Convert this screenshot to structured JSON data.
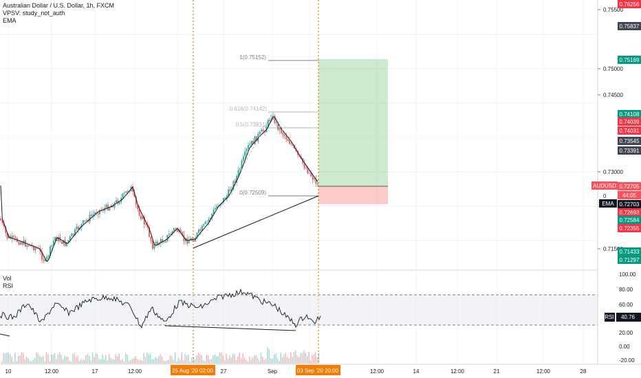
{
  "legend": {
    "title": "Australian Dollar / U.S. Dollar, 1h, FXCM",
    "study1": "VPSV: study_not_auth",
    "study2": "EMA",
    "vol": "Vol",
    "rsi": "RSI"
  },
  "price_axis": {
    "ticks": [
      "0.75500",
      "0.75000",
      "0.74500",
      "0.73000",
      "0.71500"
    ],
    "partial_ticks": [
      "0"
    ]
  },
  "price_tags": [
    {
      "label": "0.76256",
      "color": "#f23645"
    },
    {
      "label": "0.75837",
      "color": "#434651"
    },
    {
      "label": "0.75169",
      "color": "#089981"
    },
    {
      "label": "0.74108",
      "color": "#089981"
    },
    {
      "label": "0.74039",
      "color": "#f23645"
    },
    {
      "label": "0.74031",
      "color": "#f23645"
    },
    {
      "label": "0.73545",
      "color": "#434651"
    },
    {
      "label": "0.73391",
      "color": "#434651"
    },
    {
      "label": "0.72705",
      "color": "#f7525f"
    },
    {
      "label": "44:05",
      "color": "#f7525f"
    },
    {
      "label": "0.72703",
      "color": "#131722"
    },
    {
      "label": "0.72693",
      "color": "#f23645"
    },
    {
      "label": "0.72584",
      "color": "#089981"
    },
    {
      "label": "0.72355",
      "color": "#f23645"
    },
    {
      "label": "0.71433",
      "color": "#089981"
    },
    {
      "label": "0.71297",
      "color": "#089981"
    }
  ],
  "symbol_tag": "AUDUSD",
  "ema_tag": "EMA",
  "fib_labels": {
    "level1": "1(0.75152)",
    "level618": "0.618(0.74142)",
    "level05": "0.5(0.73831)",
    "level0": "0(0.72509)"
  },
  "rsi_axis": {
    "ticks": [
      "100.00",
      "80.00",
      "60.00",
      "20.00",
      "0.00",
      "-20.00"
    ],
    "rsi_tag": "RSI",
    "rsi_value": "40.76"
  },
  "time_axis": {
    "ticks": [
      "10",
      "12:00",
      "17",
      "12:00",
      "27",
      "Sep",
      "12:00",
      "14",
      "12:00",
      "21",
      "12:00",
      "28"
    ],
    "highlight_start": "25 Aug '20  02:00",
    "highlight_end": "03 Sep '20  20:00"
  },
  "colors": {
    "up": "#26a69a",
    "down": "#ef5350",
    "highlight": "#f57c00",
    "target_zone": "#4caf50",
    "stop_zone": "#f44336"
  }
}
